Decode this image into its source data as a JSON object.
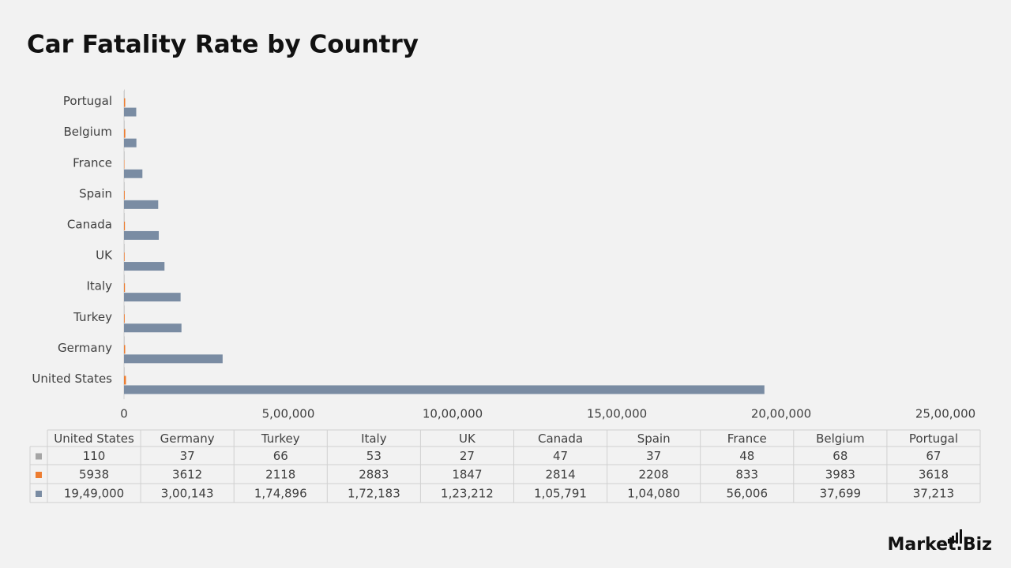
{
  "chart_data": {
    "type": "bar",
    "orientation": "horizontal",
    "title": "Car Fatality Rate by Country",
    "categories": [
      "United States",
      "Germany",
      "Turkey",
      "Italy",
      "UK",
      "Canada",
      "Spain",
      "France",
      "Belgium",
      "Portugal"
    ],
    "series": [
      {
        "color": "#a5a5a5",
        "values": [
          110,
          37,
          66,
          53,
          27,
          47,
          37,
          48,
          68,
          67
        ]
      },
      {
        "color": "#ed7d31",
        "values": [
          5938,
          3612,
          2118,
          2883,
          1847,
          2814,
          2208,
          833,
          3983,
          3618
        ]
      },
      {
        "color": "#7a8ca3",
        "values": [
          1949000,
          300143,
          174896,
          172183,
          123212,
          105791,
          104080,
          56006,
          37699,
          37213
        ],
        "value_labels": [
          "19,49,000",
          "3,00,143",
          "1,74,896",
          "1,72,183",
          "1,23,212",
          "1,05,791",
          "1,04,080",
          "56,006",
          "37,699",
          "37,213"
        ]
      }
    ],
    "xlim": [
      0,
      2500000
    ],
    "xticks": [
      0,
      {
        "value": 500000,
        "label": "5,00,000"
      },
      {
        "value": 1000000,
        "label": "10,00,000"
      },
      {
        "value": 1500000,
        "label": "15,00,000"
      },
      {
        "value": 2000000,
        "label": "20,00,000"
      },
      {
        "value": 2500000,
        "label": "25,00,000"
      }
    ],
    "grid": false,
    "data_table": true
  },
  "logo": "Market.Biz"
}
